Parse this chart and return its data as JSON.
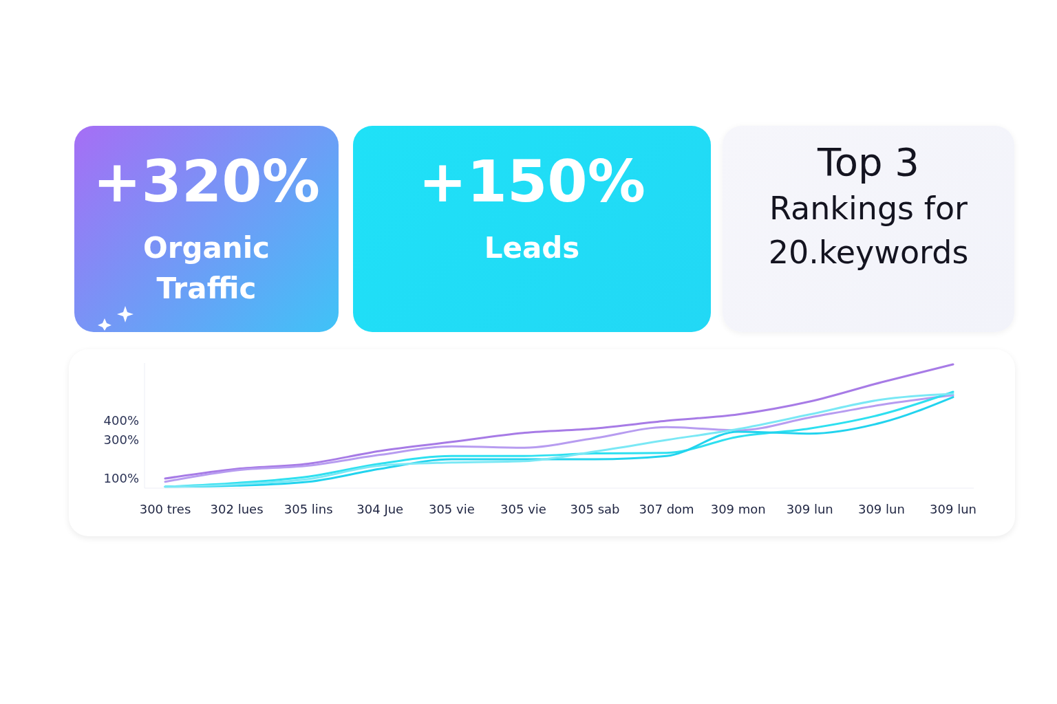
{
  "chart_data": [
    {
      "type": "other",
      "title": "+320%",
      "subtitle": "Organic Traffic",
      "colors": [
        "#a66ef5",
        "#3fc3f7"
      ]
    },
    {
      "type": "other",
      "title": "+150%",
      "subtitle": "Leads",
      "colors": [
        "#1fe1f7",
        "#22d8f5"
      ]
    },
    {
      "type": "other",
      "title": "Top 3",
      "subtitle": "Rankings for 20.keywords",
      "colors": [
        "#f6f6fb",
        "#f2f3fa"
      ]
    },
    {
      "type": "line",
      "categories": [
        "300 tres",
        "302 lues",
        "305 lins",
        "304 Jue",
        "305 vie",
        "305 vie",
        "305 sab",
        "307 dom",
        "309 mon",
        "309 lun",
        "309 lun",
        "309 lun"
      ],
      "series": [
        {
          "color": "#a77be6",
          "values": [
            100,
            150,
            177,
            243,
            290,
            337,
            360,
            400,
            433,
            500,
            600,
            693
          ]
        },
        {
          "color": "#b79cf0",
          "values": [
            83,
            143,
            167,
            223,
            267,
            260,
            310,
            367,
            350,
            417,
            483,
            533
          ]
        },
        {
          "color": "#2ee0f0",
          "values": [
            57,
            77,
            110,
            177,
            217,
            217,
            230,
            233,
            317,
            360,
            433,
            550
          ]
        },
        {
          "color": "#22d3ee",
          "values": [
            57,
            63,
            83,
            150,
            200,
            200,
            200,
            217,
            343,
            333,
            390,
            523
          ]
        },
        {
          "color": "#7ae8f5",
          "values": [
            57,
            70,
            97,
            167,
            183,
            190,
            240,
            300,
            357,
            433,
            510,
            540
          ]
        }
      ],
      "ylim": [
        50,
        700
      ],
      "yticks": [
        {
          "value": 100,
          "label": "100%"
        },
        {
          "value": 300,
          "label": "300%"
        },
        {
          "value": 400,
          "label": "400%"
        }
      ],
      "grid": false,
      "marker": "none",
      "line_style": "solid"
    }
  ]
}
